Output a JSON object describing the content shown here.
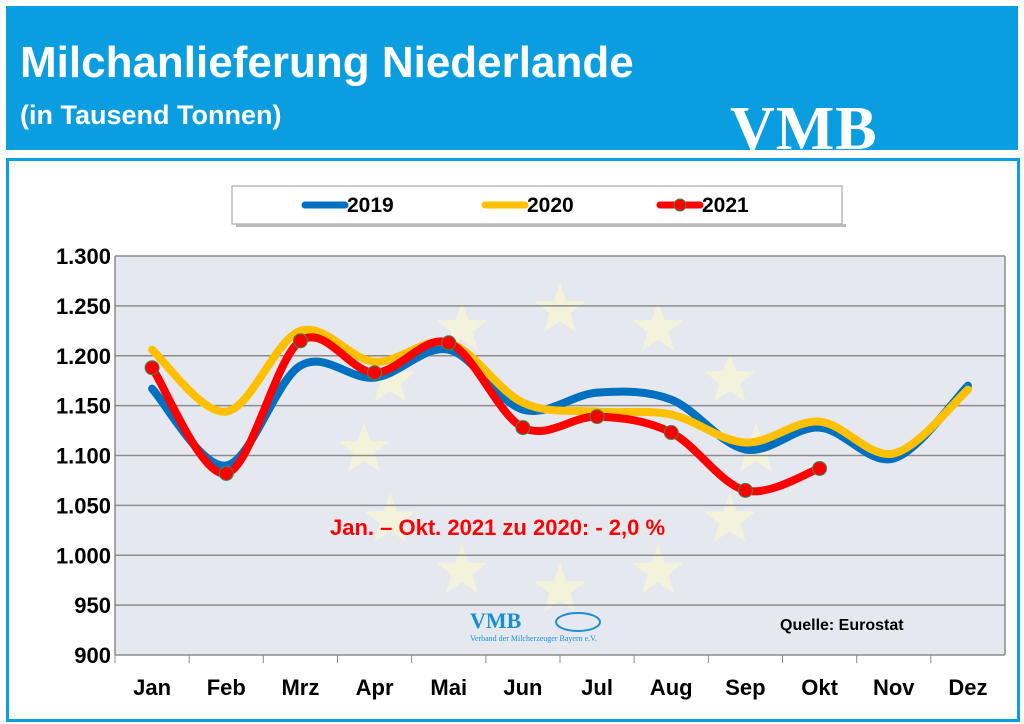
{
  "header": {
    "title": "Milchanlieferung Niederlande",
    "subtitle": "(in Tausend Tonnen)",
    "logo": "VMB"
  },
  "colors": {
    "2019": "#0070c0",
    "2020": "#ffc000",
    "2021": "#ff0000",
    "header": "#0a9ee0",
    "plot_bg": "#e6e8f0"
  },
  "chart_data": {
    "type": "line",
    "categories": [
      "Jan",
      "Feb",
      "Mrz",
      "Apr",
      "Mai",
      "Jun",
      "Jul",
      "Aug",
      "Sep",
      "Okt",
      "Nov",
      "Dez"
    ],
    "series": [
      {
        "name": "2019",
        "values": [
          1167,
          1090,
          1190,
          1178,
          1206,
          1146,
          1163,
          1156,
          1106,
          1128,
          1097,
          1170
        ]
      },
      {
        "name": "2020",
        "values": [
          1206,
          1144,
          1225,
          1194,
          1213,
          1153,
          1144,
          1141,
          1113,
          1134,
          1102,
          1166
        ]
      },
      {
        "name": "2021",
        "values": [
          1188,
          1082,
          1215,
          1183,
          1213,
          1128,
          1139,
          1123,
          1065,
          1087,
          null,
          null
        ]
      }
    ],
    "ylim": [
      900,
      1300
    ],
    "yticks": [
      "900",
      "950",
      "1.000",
      "1.050",
      "1.100",
      "1.150",
      "1.200",
      "1.250",
      "1.300"
    ],
    "ytick_values": [
      900,
      950,
      1000,
      1050,
      1100,
      1150,
      1200,
      1250,
      1300
    ],
    "grid": true,
    "legend": "top",
    "annotation": "Jan. – Okt. 2021 zu 2020: - 2,0 %",
    "source": "Quelle: Eurostat",
    "watermark_logo": "VMB",
    "watermark_text": "Verband der Milcherzeuger Bayern e.V."
  }
}
